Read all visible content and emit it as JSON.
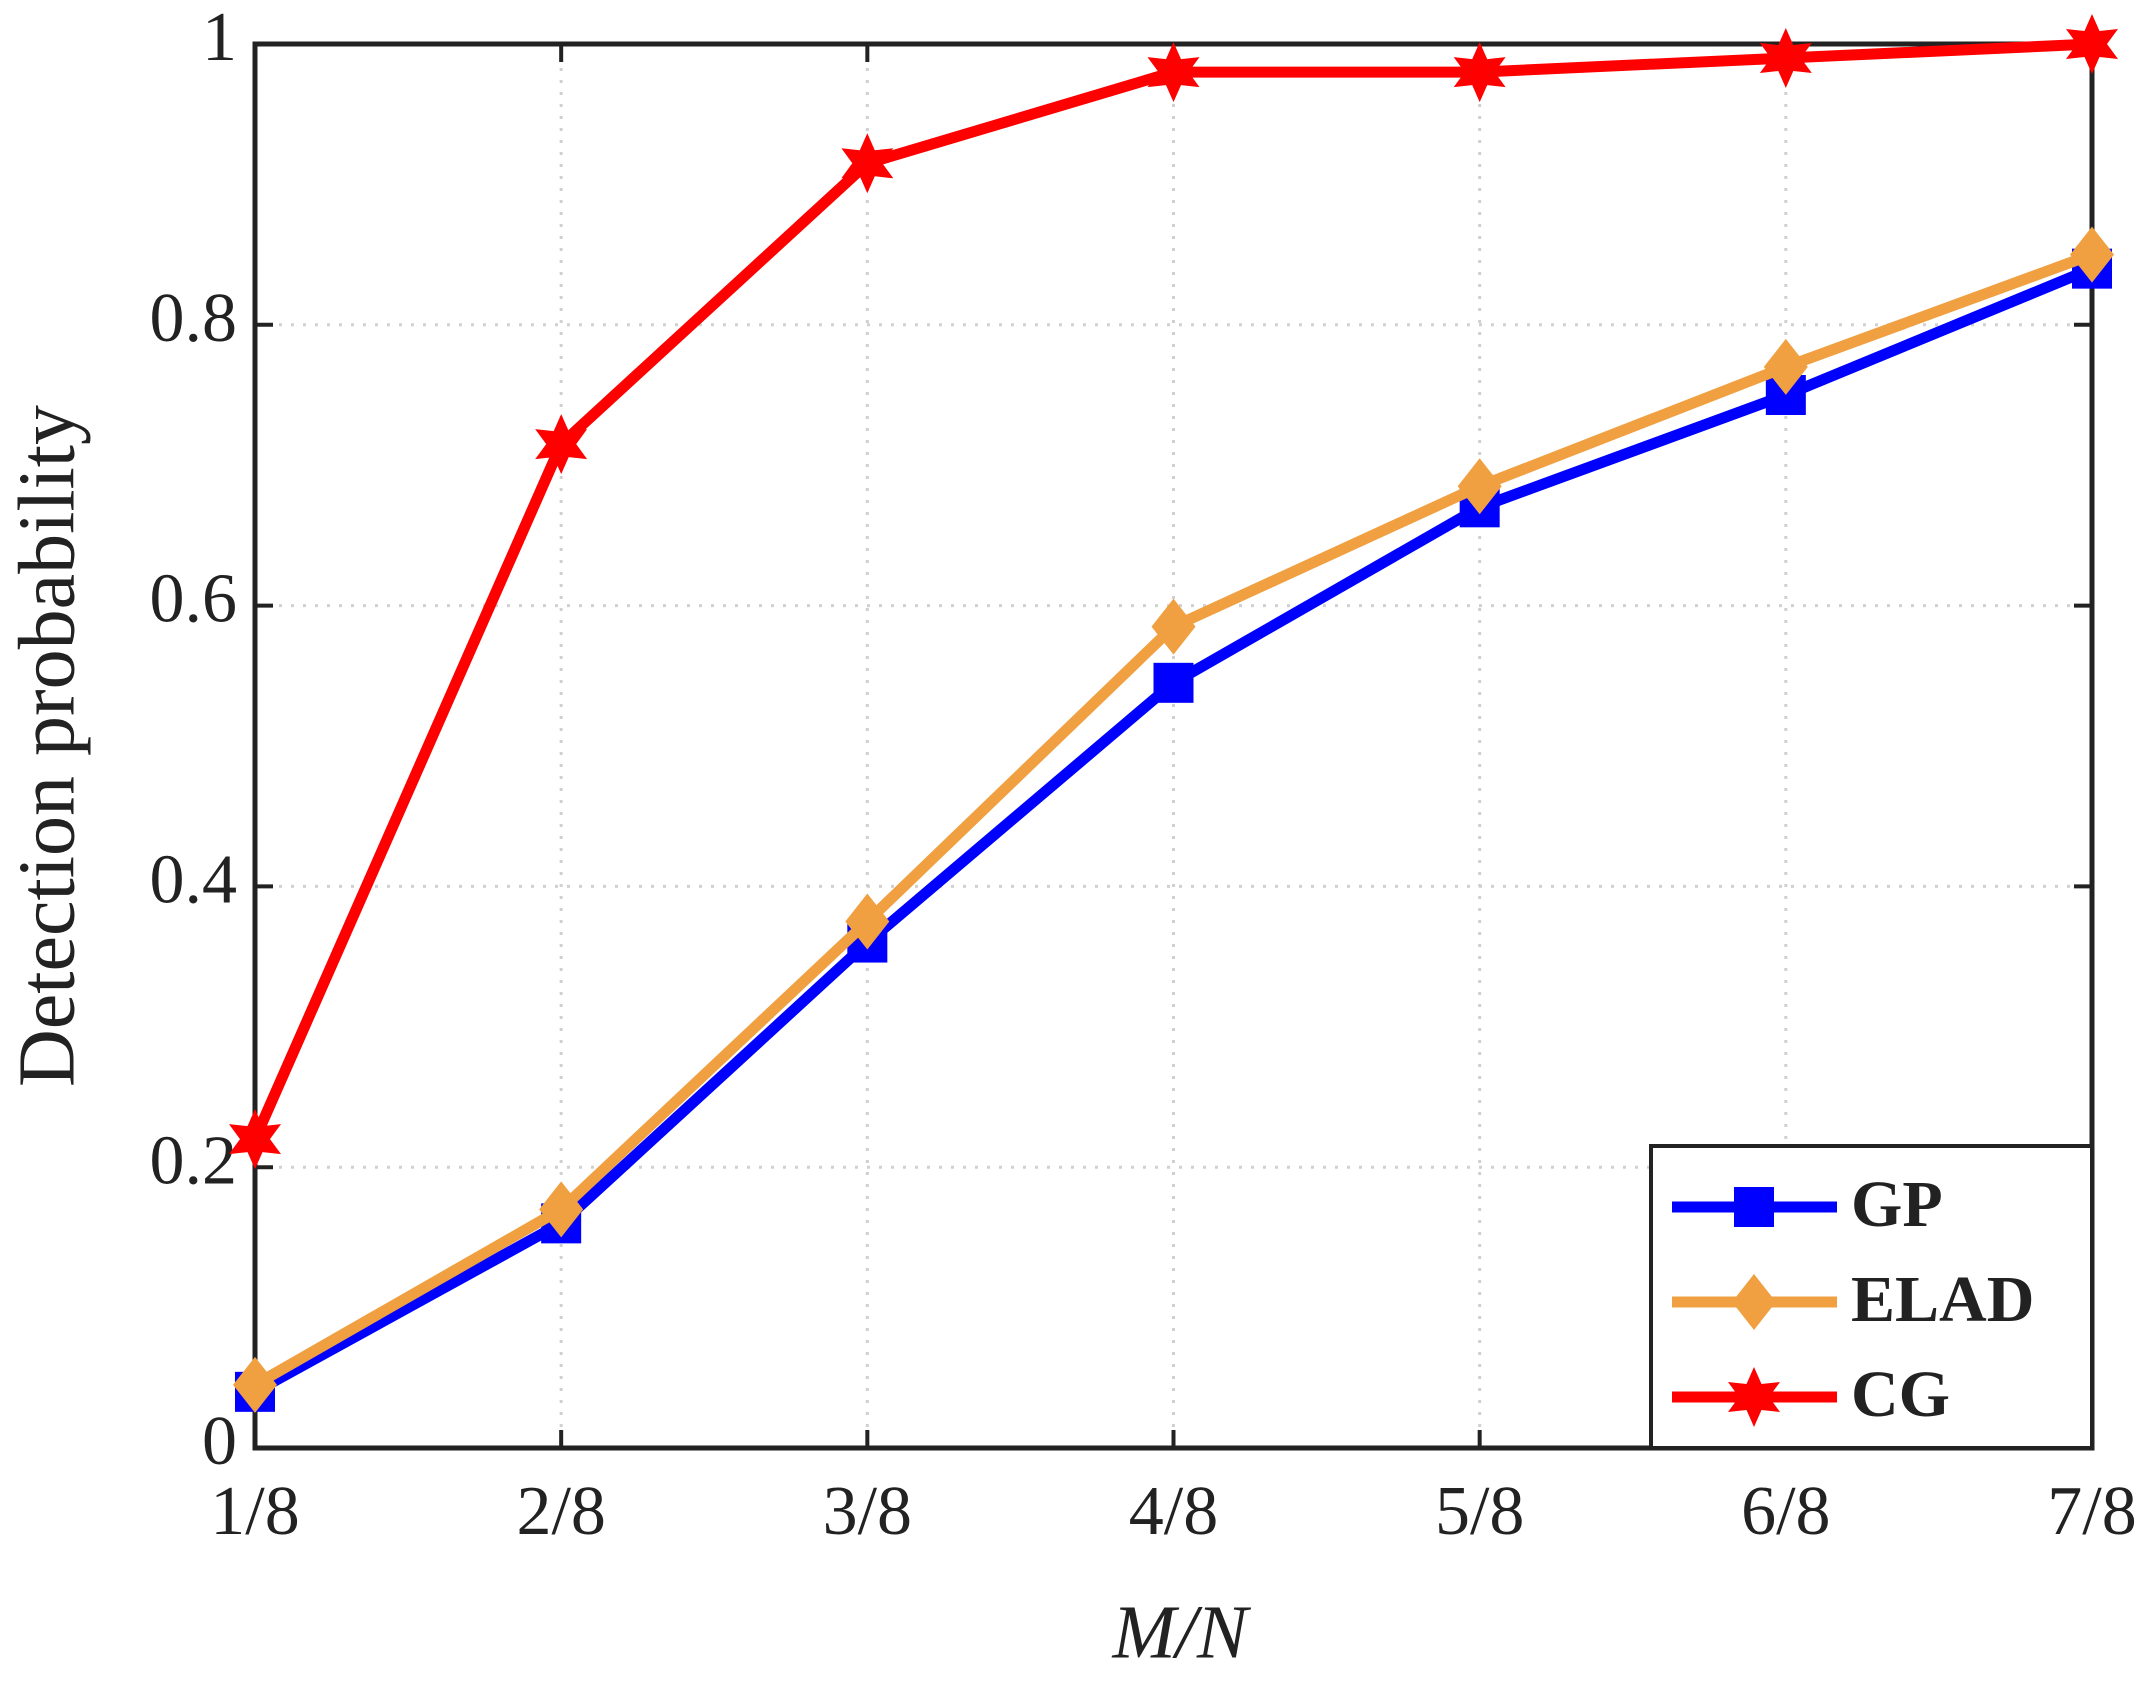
{
  "chart_data": {
    "type": "line",
    "x_label": "M/N",
    "y_label": "Detection probability",
    "categories": [
      "1/8",
      "2/8",
      "3/8",
      "4/8",
      "5/8",
      "6/8",
      "7/8"
    ],
    "series": [
      {
        "name": "GP",
        "color": "#0000ff",
        "marker": "square",
        "values": [
          0.04,
          0.16,
          0.36,
          0.545,
          0.67,
          0.75,
          0.84
        ]
      },
      {
        "name": "ELAD",
        "color": "#f0a040",
        "marker": "diamond",
        "values": [
          0.045,
          0.17,
          0.375,
          0.585,
          0.685,
          0.77,
          0.85
        ]
      },
      {
        "name": "CG",
        "color": "#ff0000",
        "marker": "star",
        "values": [
          0.22,
          0.715,
          0.915,
          0.98,
          0.98,
          0.99,
          1.0
        ]
      }
    ],
    "ylim": [
      0,
      1
    ],
    "yticks": [
      0,
      0.2,
      0.4,
      0.6,
      0.8,
      1
    ],
    "grid": true,
    "legend": "lower right"
  }
}
